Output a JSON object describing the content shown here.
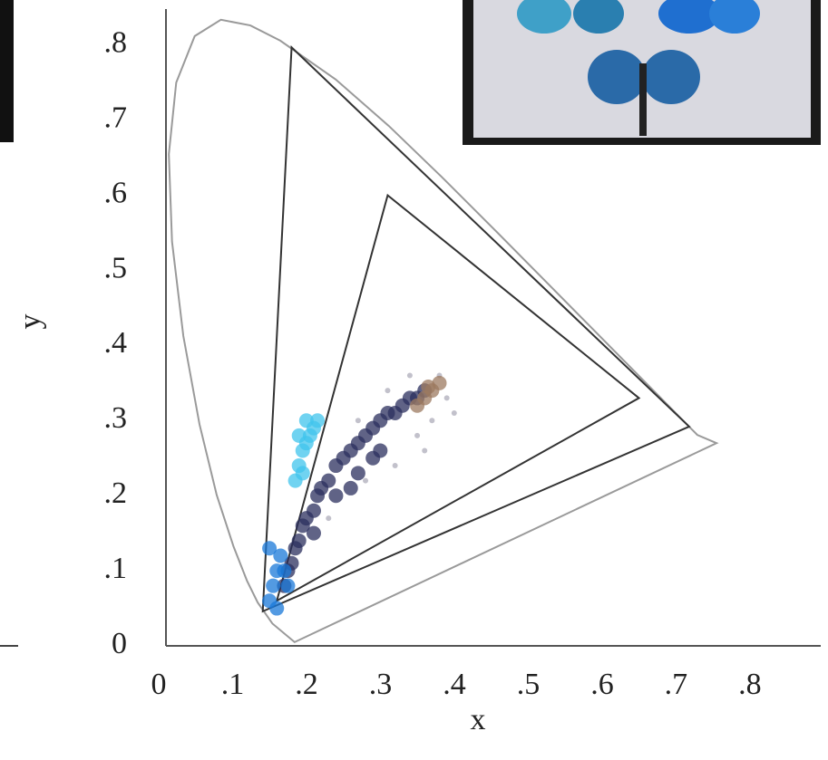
{
  "chart_data": {
    "type": "scatter",
    "xlabel": "x",
    "ylabel": "y",
    "xlim": [
      0,
      0.886
    ],
    "ylim": [
      0,
      0.848
    ],
    "xticks": [
      0,
      {
        "value": 0.1,
        "label": ".1"
      },
      {
        "value": 0.2,
        "label": ".2"
      },
      {
        "value": 0.3,
        "label": ".3"
      },
      {
        "value": 0.4,
        "label": ".4"
      },
      {
        "value": 0.5,
        "label": ".5"
      },
      {
        "value": 0.6,
        "label": ".6"
      },
      {
        "value": 0.7,
        "label": ".7"
      },
      {
        "value": 0.8,
        "label": ".8"
      }
    ],
    "yticks": [
      0,
      {
        "value": 0.1,
        "label": ".1"
      },
      {
        "value": 0.2,
        "label": ".2"
      },
      {
        "value": 0.3,
        "label": ".3"
      },
      {
        "value": 0.4,
        "label": ".4"
      },
      {
        "value": 0.5,
        "label": ".5"
      },
      {
        "value": 0.6,
        "label": ".6"
      },
      {
        "value": 0.7,
        "label": ".7"
      },
      {
        "value": 0.8,
        "label": ".8"
      }
    ],
    "locus": {
      "color": "#9a9a9a",
      "x": [
        0.1741,
        0.144,
        0.1241,
        0.1096,
        0.0913,
        0.0687,
        0.0454,
        0.0235,
        0.0082,
        0.0039,
        0.0139,
        0.0389,
        0.0743,
        0.1142,
        0.1547,
        0.2296,
        0.3016,
        0.3731,
        0.4441,
        0.5125,
        0.5752,
        0.627,
        0.6915,
        0.719,
        0.745
      ],
      "y": [
        0.005,
        0.0297,
        0.0578,
        0.0868,
        0.1327,
        0.2007,
        0.295,
        0.4127,
        0.5384,
        0.6548,
        0.7502,
        0.812,
        0.8338,
        0.8262,
        0.8059,
        0.7543,
        0.6923,
        0.6245,
        0.5547,
        0.4866,
        0.4242,
        0.3725,
        0.3083,
        0.2809,
        0.27
      ]
    },
    "gamuts": [
      {
        "color": "#333333",
        "x": [
          0.708,
          0.17,
          0.131
        ],
        "y": [
          0.292,
          0.797,
          0.046
        ]
      },
      {
        "color": "#333333",
        "x": [
          0.64,
          0.3,
          0.15
        ],
        "y": [
          0.33,
          0.6,
          0.06
        ]
      }
    ],
    "series": [
      {
        "color": "#9a98a8",
        "x": [
          0.22,
          0.27,
          0.31,
          0.34,
          0.36,
          0.38,
          0.3,
          0.33,
          0.37,
          0.26,
          0.35,
          0.39
        ],
        "y": [
          0.17,
          0.22,
          0.24,
          0.28,
          0.3,
          0.33,
          0.34,
          0.36,
          0.36,
          0.3,
          0.26,
          0.31
        ]
      },
      {
        "color": "#2b2f5e",
        "x": [
          0.16,
          0.165,
          0.17,
          0.175,
          0.18,
          0.185,
          0.19,
          0.2,
          0.205,
          0.21,
          0.22,
          0.23,
          0.24,
          0.25,
          0.26,
          0.27,
          0.28,
          0.29,
          0.3,
          0.31,
          0.32,
          0.33,
          0.34,
          0.35,
          0.2,
          0.23,
          0.26,
          0.29,
          0.25,
          0.28
        ],
        "y": [
          0.08,
          0.1,
          0.11,
          0.13,
          0.14,
          0.16,
          0.17,
          0.18,
          0.2,
          0.21,
          0.22,
          0.24,
          0.25,
          0.26,
          0.27,
          0.28,
          0.29,
          0.3,
          0.31,
          0.31,
          0.32,
          0.33,
          0.33,
          0.34,
          0.15,
          0.2,
          0.23,
          0.26,
          0.21,
          0.25
        ]
      },
      {
        "color": "#40c4ec",
        "x": [
          0.175,
          0.18,
          0.185,
          0.19,
          0.195,
          0.2,
          0.18,
          0.19,
          0.205,
          0.185
        ],
        "y": [
          0.22,
          0.24,
          0.26,
          0.27,
          0.28,
          0.29,
          0.28,
          0.3,
          0.3,
          0.23
        ]
      },
      {
        "color": "#1a78d8",
        "x": [
          0.14,
          0.145,
          0.15,
          0.155,
          0.16,
          0.15,
          0.165,
          0.14
        ],
        "y": [
          0.06,
          0.08,
          0.1,
          0.12,
          0.1,
          0.05,
          0.08,
          0.13
        ]
      },
      {
        "color": "#9c7a60",
        "x": [
          0.34,
          0.35,
          0.36,
          0.37,
          0.355
        ],
        "y": [
          0.32,
          0.33,
          0.34,
          0.35,
          0.345
        ]
      }
    ]
  }
}
